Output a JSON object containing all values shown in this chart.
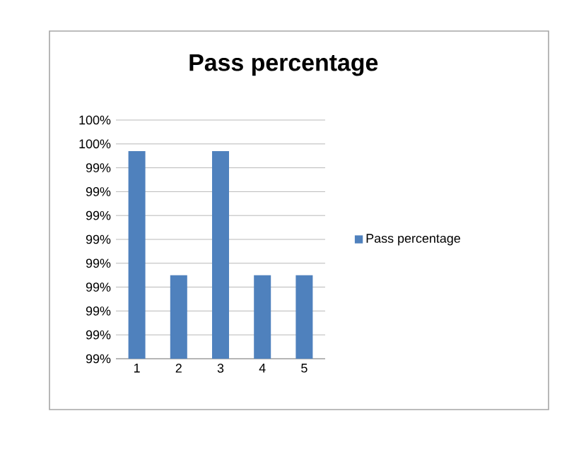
{
  "chart_data": {
    "type": "bar",
    "title": "Pass percentage",
    "categories": [
      "1",
      "2",
      "3",
      "4",
      "5"
    ],
    "series": [
      {
        "name": "Pass percentage",
        "color": "#4f81bd",
        "values": [
          99.47,
          98.95,
          99.47,
          98.95,
          98.95
        ]
      }
    ],
    "ylim": [
      98.6,
      99.6
    ],
    "yticks": [
      {
        "value": 98.6,
        "label": "99%"
      },
      {
        "value": 98.7,
        "label": "99%"
      },
      {
        "value": 98.8,
        "label": "99%"
      },
      {
        "value": 98.9,
        "label": "99%"
      },
      {
        "value": 99.0,
        "label": "99%"
      },
      {
        "value": 99.1,
        "label": "99%"
      },
      {
        "value": 99.2,
        "label": "99%"
      },
      {
        "value": 99.3,
        "label": "99%"
      },
      {
        "value": 99.4,
        "label": "99%"
      },
      {
        "value": 99.5,
        "label": "100%"
      },
      {
        "value": 99.6,
        "label": "100%"
      }
    ],
    "grid": "y",
    "legend": "right"
  }
}
